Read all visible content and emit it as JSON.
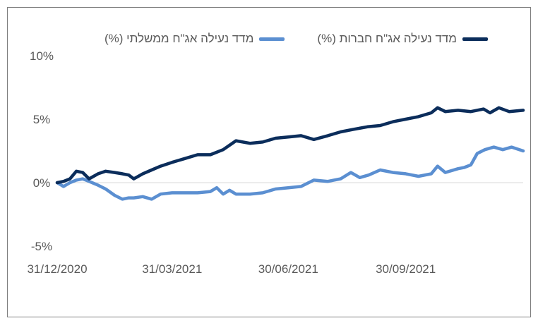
{
  "chart_data": {
    "type": "line",
    "title": "",
    "xlabel": "",
    "ylabel": "",
    "ylim": [
      -5,
      10
    ],
    "yticks": [
      "10%",
      "5%",
      "0%",
      "-5%"
    ],
    "ytick_values": [
      10,
      5,
      0,
      -5
    ],
    "xticks": [
      "31/12/2020",
      "31/03/2021",
      "30/06/2021",
      "30/09/2021"
    ],
    "x_start": "2020-12-31",
    "x_end": "2021-12-31",
    "legend_position": "top",
    "series": [
      {
        "name": "מדד נעילה אג\"ח ממשלתי (%)",
        "color": "#5b8fd1",
        "points": [
          [
            "2020-12-31",
            0.0
          ],
          [
            "2021-01-05",
            -0.3
          ],
          [
            "2021-01-10",
            0.0
          ],
          [
            "2021-01-15",
            0.2
          ],
          [
            "2021-01-20",
            0.3
          ],
          [
            "2021-01-25",
            0.1
          ],
          [
            "2021-02-01",
            -0.2
          ],
          [
            "2021-02-07",
            -0.5
          ],
          [
            "2021-02-14",
            -1.0
          ],
          [
            "2021-02-20",
            -1.3
          ],
          [
            "2021-02-25",
            -1.2
          ],
          [
            "2021-03-01",
            -1.2
          ],
          [
            "2021-03-08",
            -1.1
          ],
          [
            "2021-03-15",
            -1.3
          ],
          [
            "2021-03-22",
            -0.9
          ],
          [
            "2021-03-31",
            -0.8
          ],
          [
            "2021-04-10",
            -0.8
          ],
          [
            "2021-04-20",
            -0.8
          ],
          [
            "2021-04-30",
            -0.7
          ],
          [
            "2021-05-05",
            -0.4
          ],
          [
            "2021-05-10",
            -0.9
          ],
          [
            "2021-05-15",
            -0.6
          ],
          [
            "2021-05-20",
            -0.9
          ],
          [
            "2021-05-31",
            -0.9
          ],
          [
            "2021-06-10",
            -0.8
          ],
          [
            "2021-06-20",
            -0.5
          ],
          [
            "2021-06-30",
            -0.4
          ],
          [
            "2021-07-10",
            -0.3
          ],
          [
            "2021-07-20",
            0.2
          ],
          [
            "2021-07-31",
            0.1
          ],
          [
            "2021-08-10",
            0.3
          ],
          [
            "2021-08-18",
            0.8
          ],
          [
            "2021-08-25",
            0.4
          ],
          [
            "2021-09-01",
            0.6
          ],
          [
            "2021-09-10",
            1.0
          ],
          [
            "2021-09-20",
            0.8
          ],
          [
            "2021-09-30",
            0.7
          ],
          [
            "2021-10-10",
            0.5
          ],
          [
            "2021-10-20",
            0.7
          ],
          [
            "2021-10-25",
            1.3
          ],
          [
            "2021-10-31",
            0.8
          ],
          [
            "2021-11-10",
            1.1
          ],
          [
            "2021-11-15",
            1.2
          ],
          [
            "2021-11-20",
            1.4
          ],
          [
            "2021-11-25",
            2.3
          ],
          [
            "2021-12-01",
            2.6
          ],
          [
            "2021-12-08",
            2.8
          ],
          [
            "2021-12-15",
            2.6
          ],
          [
            "2021-12-22",
            2.8
          ],
          [
            "2021-12-31",
            2.5
          ]
        ]
      },
      {
        "name": "מדד נעילה אג\"ח חברות (%)",
        "color": "#0b2d5b",
        "points": [
          [
            "2020-12-31",
            0.0
          ],
          [
            "2021-01-05",
            0.1
          ],
          [
            "2021-01-10",
            0.3
          ],
          [
            "2021-01-15",
            0.9
          ],
          [
            "2021-01-20",
            0.8
          ],
          [
            "2021-01-25",
            0.3
          ],
          [
            "2021-02-01",
            0.7
          ],
          [
            "2021-02-07",
            0.9
          ],
          [
            "2021-02-14",
            0.8
          ],
          [
            "2021-02-20",
            0.7
          ],
          [
            "2021-02-25",
            0.6
          ],
          [
            "2021-03-01",
            0.3
          ],
          [
            "2021-03-08",
            0.7
          ],
          [
            "2021-03-15",
            1.0
          ],
          [
            "2021-03-22",
            1.3
          ],
          [
            "2021-03-31",
            1.6
          ],
          [
            "2021-04-10",
            1.9
          ],
          [
            "2021-04-20",
            2.2
          ],
          [
            "2021-04-30",
            2.2
          ],
          [
            "2021-05-10",
            2.6
          ],
          [
            "2021-05-20",
            3.3
          ],
          [
            "2021-05-31",
            3.1
          ],
          [
            "2021-06-10",
            3.2
          ],
          [
            "2021-06-20",
            3.5
          ],
          [
            "2021-06-30",
            3.6
          ],
          [
            "2021-07-10",
            3.7
          ],
          [
            "2021-07-20",
            3.4
          ],
          [
            "2021-07-31",
            3.7
          ],
          [
            "2021-08-10",
            4.0
          ],
          [
            "2021-08-20",
            4.2
          ],
          [
            "2021-08-31",
            4.4
          ],
          [
            "2021-09-10",
            4.5
          ],
          [
            "2021-09-20",
            4.8
          ],
          [
            "2021-09-30",
            5.0
          ],
          [
            "2021-10-10",
            5.2
          ],
          [
            "2021-10-20",
            5.5
          ],
          [
            "2021-10-25",
            5.9
          ],
          [
            "2021-10-31",
            5.6
          ],
          [
            "2021-11-10",
            5.7
          ],
          [
            "2021-11-20",
            5.6
          ],
          [
            "2021-11-30",
            5.8
          ],
          [
            "2021-12-05",
            5.5
          ],
          [
            "2021-12-12",
            5.9
          ],
          [
            "2021-12-20",
            5.6
          ],
          [
            "2021-12-31",
            5.7
          ]
        ]
      }
    ]
  }
}
